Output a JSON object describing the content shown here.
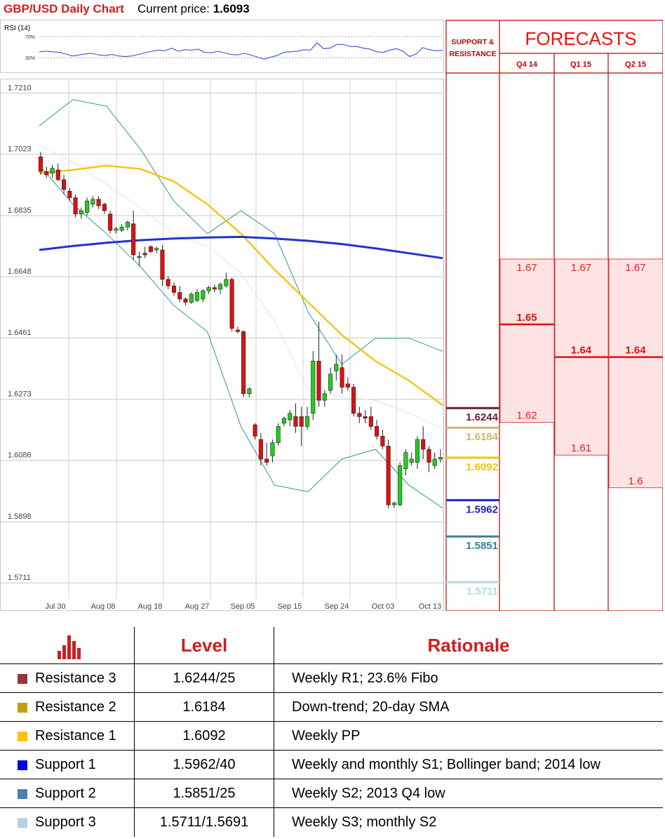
{
  "header": {
    "title": "GBP/USD Daily Chart",
    "price_label": "Current price:",
    "price_value": "1.6093"
  },
  "chart_data": [
    {
      "type": "line",
      "title": "RSI (14)",
      "ylim": [
        0,
        100
      ],
      "y_ticks": [
        "70%",
        "30%"
      ],
      "y_tick_values": [
        70,
        30
      ],
      "series": [
        {
          "values": [
            41,
            42,
            41,
            40,
            37,
            33,
            35,
            37,
            38,
            35,
            34,
            36,
            33,
            32,
            33,
            36,
            39,
            42,
            44,
            43,
            48,
            42,
            45,
            44,
            46,
            40,
            39,
            42,
            39,
            36,
            35,
            38,
            35,
            31,
            27,
            31,
            34,
            40,
            41,
            42,
            45,
            44,
            58,
            47,
            48,
            55,
            55,
            51,
            51,
            48,
            46,
            41,
            40,
            44,
            47,
            42,
            32,
            37,
            49,
            45,
            43,
            44
          ]
        }
      ]
    },
    {
      "type": "candlestick",
      "title": "",
      "ylim": [
        1.5675,
        1.7235
      ],
      "y_ticks": [
        "1.7210",
        "1.7023",
        "1.6835",
        "1.6648",
        "1.6461",
        "1.6273",
        "1.6086",
        "1.5898",
        "1.5711"
      ],
      "y_tick_values": [
        1.721,
        1.7023,
        1.6835,
        1.6648,
        1.6461,
        1.6273,
        1.6086,
        1.5898,
        1.5711
      ],
      "x_ticks": [
        "Jul 30",
        "Aug 08",
        "Aug 18",
        "Aug 27",
        "Sep 05",
        "Sep 15",
        "Sep 24",
        "Oct 03",
        "Oct 13"
      ],
      "candles": [
        [
          1.7015,
          1.703,
          1.696,
          1.697
        ],
        [
          1.697,
          1.6985,
          1.695,
          1.696
        ],
        [
          1.6965,
          1.699,
          1.695,
          1.698
        ],
        [
          1.6975,
          1.6995,
          1.694,
          1.6945
        ],
        [
          1.6945,
          1.696,
          1.69,
          1.6915
        ],
        [
          1.691,
          1.692,
          1.688,
          1.689
        ],
        [
          1.689,
          1.69,
          1.683,
          1.684
        ],
        [
          1.684,
          1.686,
          1.6825,
          1.685
        ],
        [
          1.6845,
          1.689,
          1.6835,
          1.688
        ],
        [
          1.687,
          1.6895,
          1.686,
          1.6885
        ],
        [
          1.6885,
          1.6895,
          1.6855,
          1.6865
        ],
        [
          1.687,
          1.6875,
          1.684,
          1.685
        ],
        [
          1.684,
          1.685,
          1.678,
          1.679
        ],
        [
          1.679,
          1.68,
          1.678,
          1.6795
        ],
        [
          1.679,
          1.681,
          1.6785,
          1.68
        ],
        [
          1.68,
          1.682,
          1.679,
          1.6815
        ],
        [
          1.681,
          1.685,
          1.67,
          1.6715
        ],
        [
          1.671,
          1.6725,
          1.668,
          1.671
        ],
        [
          1.672,
          1.674,
          1.6705,
          1.6715
        ],
        [
          1.674,
          1.6745,
          1.672,
          1.6725
        ],
        [
          1.673,
          1.674,
          1.672,
          1.6735
        ],
        [
          1.673,
          1.6745,
          1.662,
          1.664
        ],
        [
          1.664,
          1.665,
          1.661,
          1.662
        ],
        [
          1.662,
          1.663,
          1.659,
          1.66
        ],
        [
          1.66,
          1.662,
          1.657,
          1.658
        ],
        [
          1.658,
          1.6585,
          1.656,
          1.657
        ],
        [
          1.657,
          1.66,
          1.6565,
          1.6595
        ],
        [
          1.6575,
          1.661,
          1.657,
          1.66
        ],
        [
          1.658,
          1.661,
          1.657,
          1.6605
        ],
        [
          1.6605,
          1.662,
          1.6595,
          1.6615
        ],
        [
          1.6615,
          1.6625,
          1.66,
          1.661
        ],
        [
          1.661,
          1.663,
          1.6595,
          1.6625
        ],
        [
          1.662,
          1.666,
          1.6615,
          1.664
        ],
        [
          1.664,
          1.6645,
          1.648,
          1.649
        ],
        [
          1.6485,
          1.6495,
          1.6475,
          1.648
        ],
        [
          1.648,
          1.6485,
          1.628,
          1.629
        ],
        [
          1.629,
          1.631,
          1.628,
          1.6305
        ],
        [
          1.6195,
          1.62,
          1.615,
          1.616
        ],
        [
          1.615,
          1.617,
          1.607,
          1.609
        ],
        [
          1.609,
          1.614,
          1.607,
          1.608
        ],
        [
          1.61,
          1.615,
          1.608,
          1.614
        ],
        [
          1.614,
          1.62,
          1.613,
          1.619
        ],
        [
          1.62,
          1.622,
          1.619,
          1.6215
        ],
        [
          1.621,
          1.624,
          1.619,
          1.623
        ],
        [
          1.622,
          1.626,
          1.617,
          1.619
        ],
        [
          1.622,
          1.625,
          1.613,
          1.619
        ],
        [
          1.619,
          1.625,
          1.618,
          1.622
        ],
        [
          1.623,
          1.642,
          1.621,
          1.639
        ],
        [
          1.639,
          1.651,
          1.625,
          1.627
        ],
        [
          1.627,
          1.63,
          1.625,
          1.629
        ],
        [
          1.63,
          1.637,
          1.629,
          1.635
        ],
        [
          1.636,
          1.641,
          1.633,
          1.638
        ],
        [
          1.637,
          1.641,
          1.629,
          1.631
        ],
        [
          1.632,
          1.634,
          1.63,
          1.631
        ],
        [
          1.631,
          1.632,
          1.622,
          1.623
        ],
        [
          1.623,
          1.625,
          1.62,
          1.622
        ],
        [
          1.622,
          1.624,
          1.62,
          1.6215
        ],
        [
          1.622,
          1.625,
          1.618,
          1.619
        ],
        [
          1.619,
          1.621,
          1.615,
          1.616
        ],
        [
          1.616,
          1.618,
          1.612,
          1.613
        ],
        [
          1.613,
          1.615,
          1.594,
          1.595
        ],
        [
          1.595,
          1.596,
          1.594,
          1.5955
        ],
        [
          1.595,
          1.608,
          1.5945,
          1.607
        ],
        [
          1.606,
          1.612,
          1.604,
          1.611
        ],
        [
          1.608,
          1.611,
          1.607,
          1.609
        ],
        [
          1.608,
          1.616,
          1.606,
          1.615
        ],
        [
          1.615,
          1.619,
          1.609,
          1.612
        ],
        [
          1.612,
          1.613,
          1.605,
          1.608
        ],
        [
          1.607,
          1.611,
          1.606,
          1.609
        ],
        [
          1.609,
          1.612,
          1.608,
          1.6095
        ]
      ],
      "lines": [
        {
          "name": "sma200",
          "color": "#2233cc",
          "values": [
            1.673,
            1.6742,
            1.6752,
            1.676,
            1.6765,
            1.6768,
            1.677,
            1.6765,
            1.6758,
            1.6748,
            1.6735,
            1.672,
            1.6705
          ]
        },
        {
          "name": "sma50",
          "color": "#f5c518",
          "values": [
            1.6965,
            1.6975,
            1.6988,
            1.6978,
            1.694,
            1.687,
            1.678,
            1.667,
            1.657,
            1.647,
            1.639,
            1.633,
            1.6255
          ]
        },
        {
          "name": "bb_upper",
          "color": "#2a9a9a",
          "values": [
            1.711,
            1.719,
            1.717,
            1.704,
            1.688,
            1.678,
            1.685,
            1.678,
            1.654,
            1.638,
            1.646,
            1.646,
            1.642
          ]
        },
        {
          "name": "bb_lower",
          "color": "#2a9a9a",
          "values": [
            1.699,
            1.687,
            1.678,
            1.668,
            1.656,
            1.648,
            1.619,
            1.601,
            1.599,
            1.609,
            1.612,
            1.601,
            1.594
          ]
        },
        {
          "name": "sma20",
          "color": "#e3e3e3",
          "values": [
            1.705,
            1.7,
            1.693,
            1.686,
            1.678,
            1.674,
            1.666,
            1.651,
            1.63,
            1.628,
            1.627,
            1.623,
            1.6184
          ]
        }
      ]
    }
  ],
  "forecast": {
    "sr_title_line1": "SUPPORT &",
    "sr_title_line2": "RESISTANCE",
    "title": "FORECASTS",
    "quarters": [
      "Q4 14",
      "Q1 15",
      "Q2 15"
    ],
    "ylim": [
      1.5675,
      1.7235
    ],
    "ranges": [
      {
        "high": 1.67,
        "low": 1.62,
        "mid": 1.65,
        "high_label": "1.67",
        "low_label": "1.62",
        "mid_label": "1.65"
      },
      {
        "high": 1.67,
        "low": 1.61,
        "mid": 1.64,
        "high_label": "1.67",
        "low_label": "1.61",
        "mid_label": "1.64"
      },
      {
        "high": 1.67,
        "low": 1.6,
        "mid": 1.64,
        "high_label": "1.67",
        "low_label": "1.6",
        "mid_label": "1.64"
      }
    ],
    "levels": [
      {
        "value": 1.6244,
        "label": "1.6244",
        "color": "#6b1a3a"
      },
      {
        "value": 1.6184,
        "label": "1.6184",
        "color": "#d4b36a"
      },
      {
        "value": 1.6092,
        "label": "1.6092",
        "color": "#f2c500"
      },
      {
        "value": 1.5962,
        "label": "1.5962",
        "color": "#1f22c8"
      },
      {
        "value": 1.5851,
        "label": "1.5851",
        "color": "#3c7d9c"
      },
      {
        "value": 1.5711,
        "label": "1.5711",
        "color": "#b9d9e2"
      }
    ]
  },
  "table": {
    "header_level": "Level",
    "header_rationale": "Rationale",
    "rows": [
      {
        "name": "Resistance 3",
        "level": "1.6244/25",
        "rationale": "Weekly R1; 23.6% Fibo",
        "color": "#953735"
      },
      {
        "name": "Resistance 2",
        "level": "1.6184",
        "rationale": "Down-trend; 20-day SMA",
        "color": "#c89a10"
      },
      {
        "name": "Resistance 1",
        "level": "1.6092",
        "rationale": "Weekly PP",
        "color": "#ffc000"
      },
      {
        "name": "Support 1",
        "level": "1.5962/40",
        "rationale": "Weekly and monthly S1; Bollinger band; 2014 low",
        "color": "#0000ee"
      },
      {
        "name": "Support 2",
        "level": "1.5851/25",
        "rationale": "Weekly S2; 2013 Q4 low",
        "color": "#4a7ebb"
      },
      {
        "name": "Support 3",
        "level": "1.5711/1.5691",
        "rationale": "Weekly S3; monthly S2",
        "color": "#b9cde5"
      }
    ]
  }
}
